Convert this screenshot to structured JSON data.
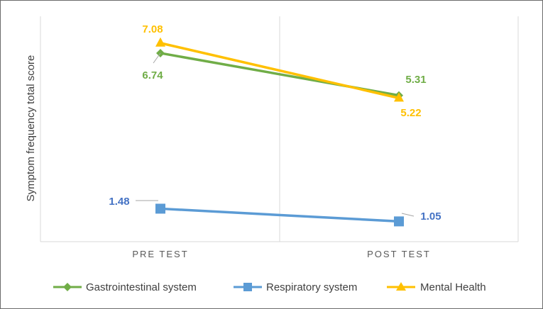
{
  "chart_data": {
    "type": "line",
    "title": "",
    "xlabel": "",
    "ylabel": "Symptom frequency total score",
    "categories": [
      "PRE TEST",
      "POST TEST"
    ],
    "ylim": [
      0,
      8.5
    ],
    "grid": false,
    "legend_position": "bottom",
    "series": [
      {
        "name": "Gastrointestinal system",
        "values": [
          6.74,
          5.31
        ],
        "labels": [
          "6.74",
          "5.31"
        ],
        "color": "#70ad47",
        "marker": "diamond"
      },
      {
        "name": "Respiratory system",
        "values": [
          1.48,
          1.05
        ],
        "labels": [
          "1.48",
          "1.05"
        ],
        "color": "#5b9bd5",
        "marker": "square"
      },
      {
        "name": "Mental Health",
        "values": [
          7.08,
          5.22
        ],
        "labels": [
          "7.08",
          "5.22"
        ],
        "color": "#ffc000",
        "marker": "triangle"
      }
    ]
  },
  "colors": {
    "axis": "#d9d9d9",
    "leader": "#a6a6a6",
    "gi_label": "#70ad47",
    "resp_label": "#4472c4",
    "mh_label": "#ffc000"
  }
}
